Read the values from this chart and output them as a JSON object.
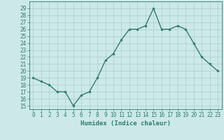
{
  "x": [
    0,
    1,
    2,
    3,
    4,
    5,
    6,
    7,
    8,
    9,
    10,
    11,
    12,
    13,
    14,
    15,
    16,
    17,
    18,
    19,
    20,
    21,
    22,
    23
  ],
  "y": [
    19,
    18.5,
    18,
    17,
    17,
    15,
    16.5,
    17,
    19,
    21.5,
    22.5,
    24.5,
    26,
    26,
    26.5,
    29,
    26,
    26,
    26.5,
    26,
    24,
    22,
    21,
    20
  ],
  "line_color": "#2e7d6e",
  "marker_color": "#2e7d6e",
  "bg_color": "#cce8e8",
  "grid_color": "#aacece",
  "xlabel": "Humidex (Indice chaleur)",
  "xlim": [
    -0.5,
    23.5
  ],
  "ylim": [
    14.5,
    30
  ],
  "yticks": [
    15,
    16,
    17,
    18,
    19,
    20,
    21,
    22,
    23,
    24,
    25,
    26,
    27,
    28,
    29
  ],
  "xticks": [
    0,
    1,
    2,
    3,
    4,
    5,
    6,
    7,
    8,
    9,
    10,
    11,
    12,
    13,
    14,
    15,
    16,
    17,
    18,
    19,
    20,
    21,
    22,
    23
  ],
  "font_size": 5.5,
  "xlabel_fontsize": 6.5,
  "marker_size": 2,
  "line_width": 1.0
}
